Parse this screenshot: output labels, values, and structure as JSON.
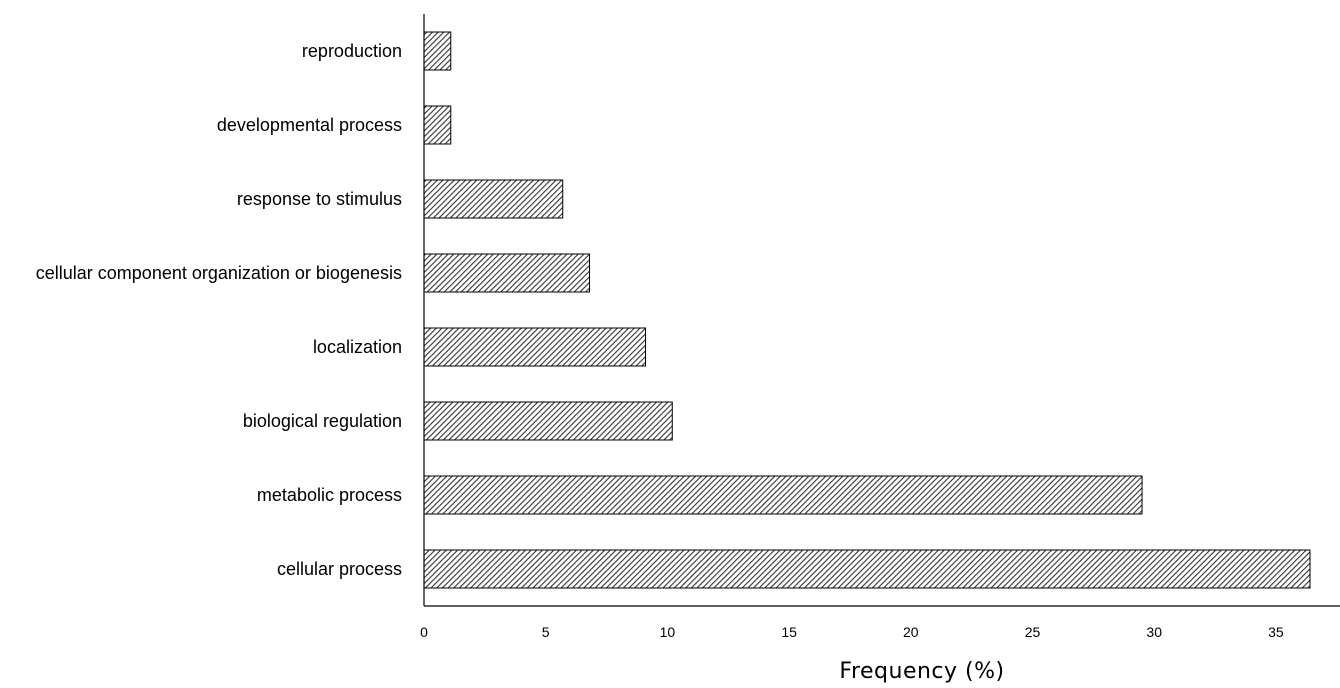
{
  "chart_data": {
    "type": "bar",
    "orientation": "horizontal",
    "categories": [
      "reproduction",
      "developmental process",
      "response to stimulus",
      "cellular component organization or biogenesis",
      "localization",
      "biological regulation",
      "metabolic process",
      "cellular process"
    ],
    "values": [
      1.1,
      1.1,
      5.7,
      6.8,
      9.1,
      10.2,
      29.5,
      36.4
    ],
    "title": "",
    "xlabel": "Frequency (%)",
    "ylabel": "",
    "xlim": [
      0,
      37.5
    ],
    "xticks": [
      "0",
      "5",
      "10",
      "15",
      "20",
      "25",
      "30",
      "35"
    ],
    "grid": false,
    "legend": "none",
    "bar_fill": "diagonal hatch",
    "bar_color": "#555555",
    "axis_color": "#000000"
  }
}
